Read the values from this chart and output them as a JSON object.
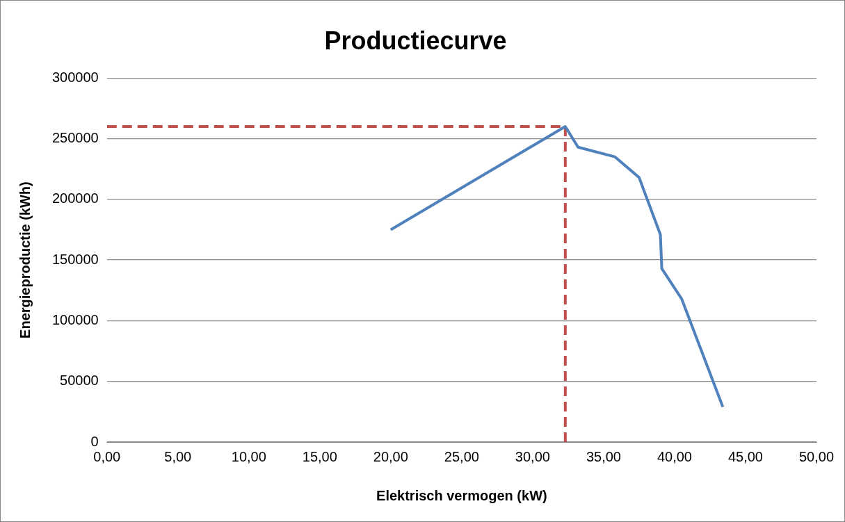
{
  "chart_data": {
    "type": "line",
    "title": "Productiecurve",
    "xlabel": "Elektrisch vermogen (kW)",
    "ylabel": "Energieproductie (kWh)",
    "xlim": [
      0,
      50
    ],
    "ylim": [
      0,
      300000
    ],
    "xticks": [
      {
        "value": 0,
        "label": "0,00"
      },
      {
        "value": 5,
        "label": "5,00"
      },
      {
        "value": 10,
        "label": "10,00"
      },
      {
        "value": 15,
        "label": "15,00"
      },
      {
        "value": 20,
        "label": "20,00"
      },
      {
        "value": 25,
        "label": "25,00"
      },
      {
        "value": 30,
        "label": "30,00"
      },
      {
        "value": 35,
        "label": "35,00"
      },
      {
        "value": 40,
        "label": "40,00"
      },
      {
        "value": 45,
        "label": "45,00"
      },
      {
        "value": 50,
        "label": "50,00"
      }
    ],
    "yticks": [
      0,
      50000,
      100000,
      150000,
      200000,
      250000,
      300000
    ],
    "grid": "y",
    "legend": false,
    "marker": "none",
    "series": [
      {
        "color": "#4f81bd",
        "line_style": "solid",
        "x": [
          20,
          32.3,
          33.2,
          35.8,
          37.5,
          39,
          39.1,
          40.5,
          43.4
        ],
        "values": [
          175000,
          260000,
          243000,
          235000,
          218000,
          171000,
          143000,
          118000,
          29000
        ]
      },
      {
        "color": "#c0504d",
        "line_style": "dashed",
        "x": [
          0,
          32.3
        ],
        "values": [
          260000,
          260000
        ]
      },
      {
        "color": "#c0504d",
        "line_style": "dashed",
        "x": [
          32.3,
          32.3
        ],
        "values": [
          0,
          260000
        ]
      }
    ]
  }
}
